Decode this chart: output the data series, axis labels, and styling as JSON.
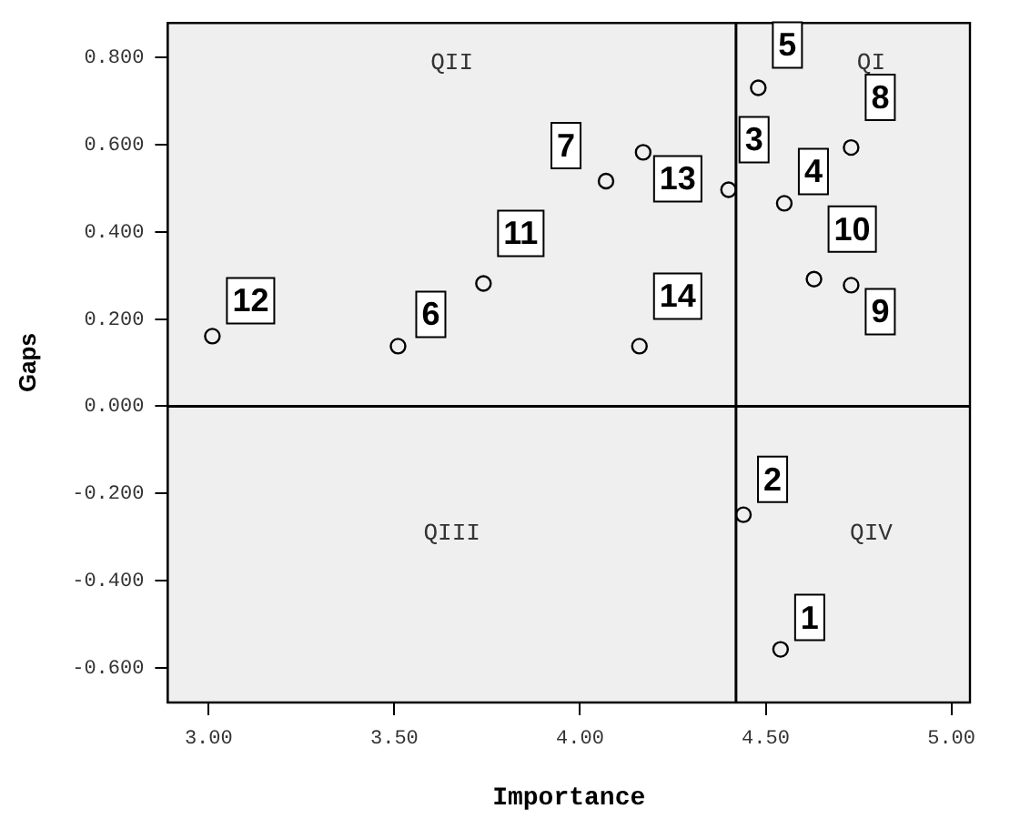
{
  "chart_data": {
    "type": "scatter",
    "xlabel": "Importance",
    "ylabel": "Gaps",
    "x": [
      4.54,
      4.44,
      4.4,
      4.55,
      4.48,
      3.51,
      4.07,
      4.73,
      4.73,
      4.63,
      3.74,
      3.01,
      4.17,
      4.16
    ],
    "series": [
      {
        "color": "#000000",
        "values": [
          -0.558,
          -0.249,
          0.497,
          0.466,
          0.731,
          0.138,
          0.517,
          0.594,
          0.278,
          0.292,
          0.282,
          0.161,
          0.583,
          0.138
        ]
      }
    ],
    "xlim": [
      2.89,
      5.05
    ],
    "xticks": [
      {
        "value": 3,
        "label": "3.00"
      },
      {
        "value": 3.5,
        "label": "3.50"
      },
      {
        "value": 4,
        "label": "4.00"
      },
      {
        "value": 4.5,
        "label": "4.50"
      },
      {
        "value": 5,
        "label": "5.00"
      }
    ],
    "ylim": [
      -0.68,
      0.88
    ],
    "yticks": [
      {
        "value": -0.6,
        "label": "-0.600"
      },
      {
        "value": -0.4,
        "label": "-0.400"
      },
      {
        "value": -0.2,
        "label": "-0.200"
      },
      {
        "value": 0,
        "label": "0.000"
      },
      {
        "value": 0.2,
        "label": "0.200"
      },
      {
        "value": 0.4,
        "label": "0.400"
      },
      {
        "value": 0.6,
        "label": "0.600"
      },
      {
        "value": 0.8,
        "label": "0.800"
      }
    ],
    "ref_lines": [
      {
        "axis": "x",
        "value": 4.42,
        "color": "#000000"
      },
      {
        "axis": "y",
        "value": 0,
        "color": "#000000"
      }
    ],
    "annotations": [
      "QII",
      "QI",
      "QIII",
      "QIV",
      {
        "text": "1",
        "x": 4.54,
        "y": -0.558
      },
      {
        "text": "2",
        "x": 4.44,
        "y": -0.249
      },
      {
        "text": "3",
        "x": 4.4,
        "y": 0.497
      },
      {
        "text": "4",
        "x": 4.55,
        "y": 0.466
      },
      {
        "text": "5",
        "x": 4.48,
        "y": 0.731
      },
      {
        "text": "6",
        "x": 3.51,
        "y": 0.138
      },
      {
        "text": "7",
        "x": 4.07,
        "y": 0.517
      },
      {
        "text": "8",
        "x": 4.73,
        "y": 0.594
      },
      {
        "text": "9",
        "x": 4.73,
        "y": 0.278
      },
      {
        "text": "10",
        "x": 4.63,
        "y": 0.292
      },
      {
        "text": "11",
        "x": 3.74,
        "y": 0.282
      },
      {
        "text": "12",
        "x": 3.01,
        "y": 0.161
      },
      {
        "text": "13",
        "x": 4.17,
        "y": 0.583
      },
      {
        "text": "14",
        "x": 4.16,
        "y": 0.138
      }
    ],
    "grid": false,
    "legend": false,
    "marker": "circle"
  }
}
